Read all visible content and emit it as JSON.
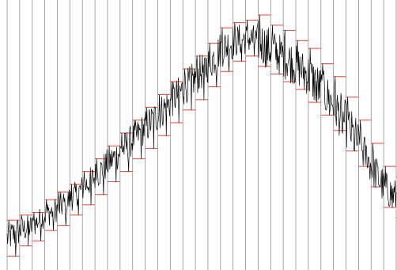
{
  "chart_data": {
    "type": "line",
    "title": "",
    "xlabel": "",
    "ylabel": "",
    "grid": {
      "vertical": true,
      "horizontal": false
    },
    "xlim": [
      0,
      31
    ],
    "ylim": [
      0,
      100
    ],
    "colors": {
      "series": "#000000",
      "bin_extremes": "#e8473f",
      "grid": "#8f8f8f"
    },
    "bins": [
      {
        "x": 0,
        "min": 2,
        "max": 16
      },
      {
        "x": 1,
        "min": 6,
        "max": 18
      },
      {
        "x": 2,
        "min": 8,
        "max": 19
      },
      {
        "x": 3,
        "min": 12,
        "max": 24
      },
      {
        "x": 4,
        "min": 14,
        "max": 27
      },
      {
        "x": 5,
        "min": 18,
        "max": 30
      },
      {
        "x": 6,
        "min": 22,
        "max": 35
      },
      {
        "x": 7,
        "min": 26,
        "max": 40
      },
      {
        "x": 8,
        "min": 31,
        "max": 45
      },
      {
        "x": 9,
        "min": 35,
        "max": 50
      },
      {
        "x": 10,
        "min": 40,
        "max": 55
      },
      {
        "x": 11,
        "min": 44,
        "max": 60
      },
      {
        "x": 12,
        "min": 49,
        "max": 65
      },
      {
        "x": 13,
        "min": 54,
        "max": 70
      },
      {
        "x": 14,
        "min": 59,
        "max": 75
      },
      {
        "x": 15,
        "min": 63,
        "max": 80
      },
      {
        "x": 16,
        "min": 68,
        "max": 85
      },
      {
        "x": 17,
        "min": 74,
        "max": 91
      },
      {
        "x": 18,
        "min": 78,
        "max": 93
      },
      {
        "x": 19,
        "min": 80,
        "max": 94
      },
      {
        "x": 20,
        "min": 76,
        "max": 96
      },
      {
        "x": 21,
        "min": 73,
        "max": 92
      },
      {
        "x": 22,
        "min": 70,
        "max": 90
      },
      {
        "x": 23,
        "min": 67,
        "max": 86
      },
      {
        "x": 24,
        "min": 62,
        "max": 83
      },
      {
        "x": 25,
        "min": 57,
        "max": 77
      },
      {
        "x": 26,
        "min": 51,
        "max": 72
      },
      {
        "x": 27,
        "min": 43,
        "max": 64
      },
      {
        "x": 28,
        "min": 37,
        "max": 55
      },
      {
        "x": 29,
        "min": 29,
        "max": 46
      },
      {
        "x": 30,
        "min": 21,
        "max": 37
      },
      {
        "x": 31,
        "min": 17,
        "max": 33
      }
    ]
  }
}
